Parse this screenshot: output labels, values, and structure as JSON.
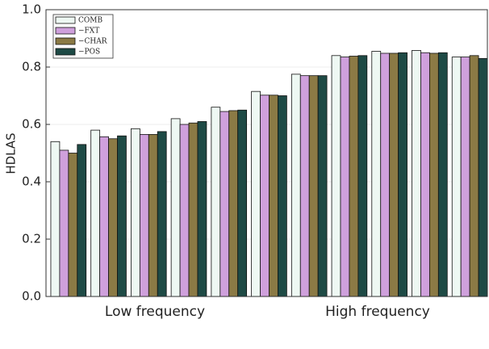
{
  "chart_data": {
    "type": "bar",
    "y_label": "HDLAS",
    "categories": [
      null,
      null,
      null,
      null,
      null,
      null,
      null,
      null,
      null,
      null,
      null
    ],
    "x_group_labels": [
      "Low frequency",
      "High frequency"
    ],
    "series": [
      {
        "name": "COMB",
        "color": "#eef8f3",
        "values": [
          0.54,
          0.58,
          0.585,
          0.62,
          0.66,
          0.715,
          0.775,
          0.84,
          0.855,
          0.858,
          0.835
        ]
      },
      {
        "name": "−FXT",
        "color": "#cfa0dc",
        "values": [
          0.51,
          0.557,
          0.565,
          0.6,
          0.645,
          0.702,
          0.77,
          0.835,
          0.848,
          0.85,
          0.835
        ]
      },
      {
        "name": "−CHAR",
        "color": "#8b7a45",
        "values": [
          0.5,
          0.55,
          0.565,
          0.605,
          0.648,
          0.702,
          0.77,
          0.838,
          0.848,
          0.848,
          0.84
        ]
      },
      {
        "name": "−POS",
        "color": "#1e4a45",
        "values": [
          0.53,
          0.56,
          0.575,
          0.61,
          0.65,
          0.7,
          0.77,
          0.84,
          0.85,
          0.85,
          0.83
        ]
      }
    ],
    "ylim": [
      0,
      1
    ],
    "yticks": [
      {
        "value": 0,
        "label": "0.0"
      },
      0.2,
      0.4,
      0.6,
      0.8,
      {
        "value": 1,
        "label": "1.0"
      }
    ],
    "grid": true,
    "legend": "upper-left"
  }
}
